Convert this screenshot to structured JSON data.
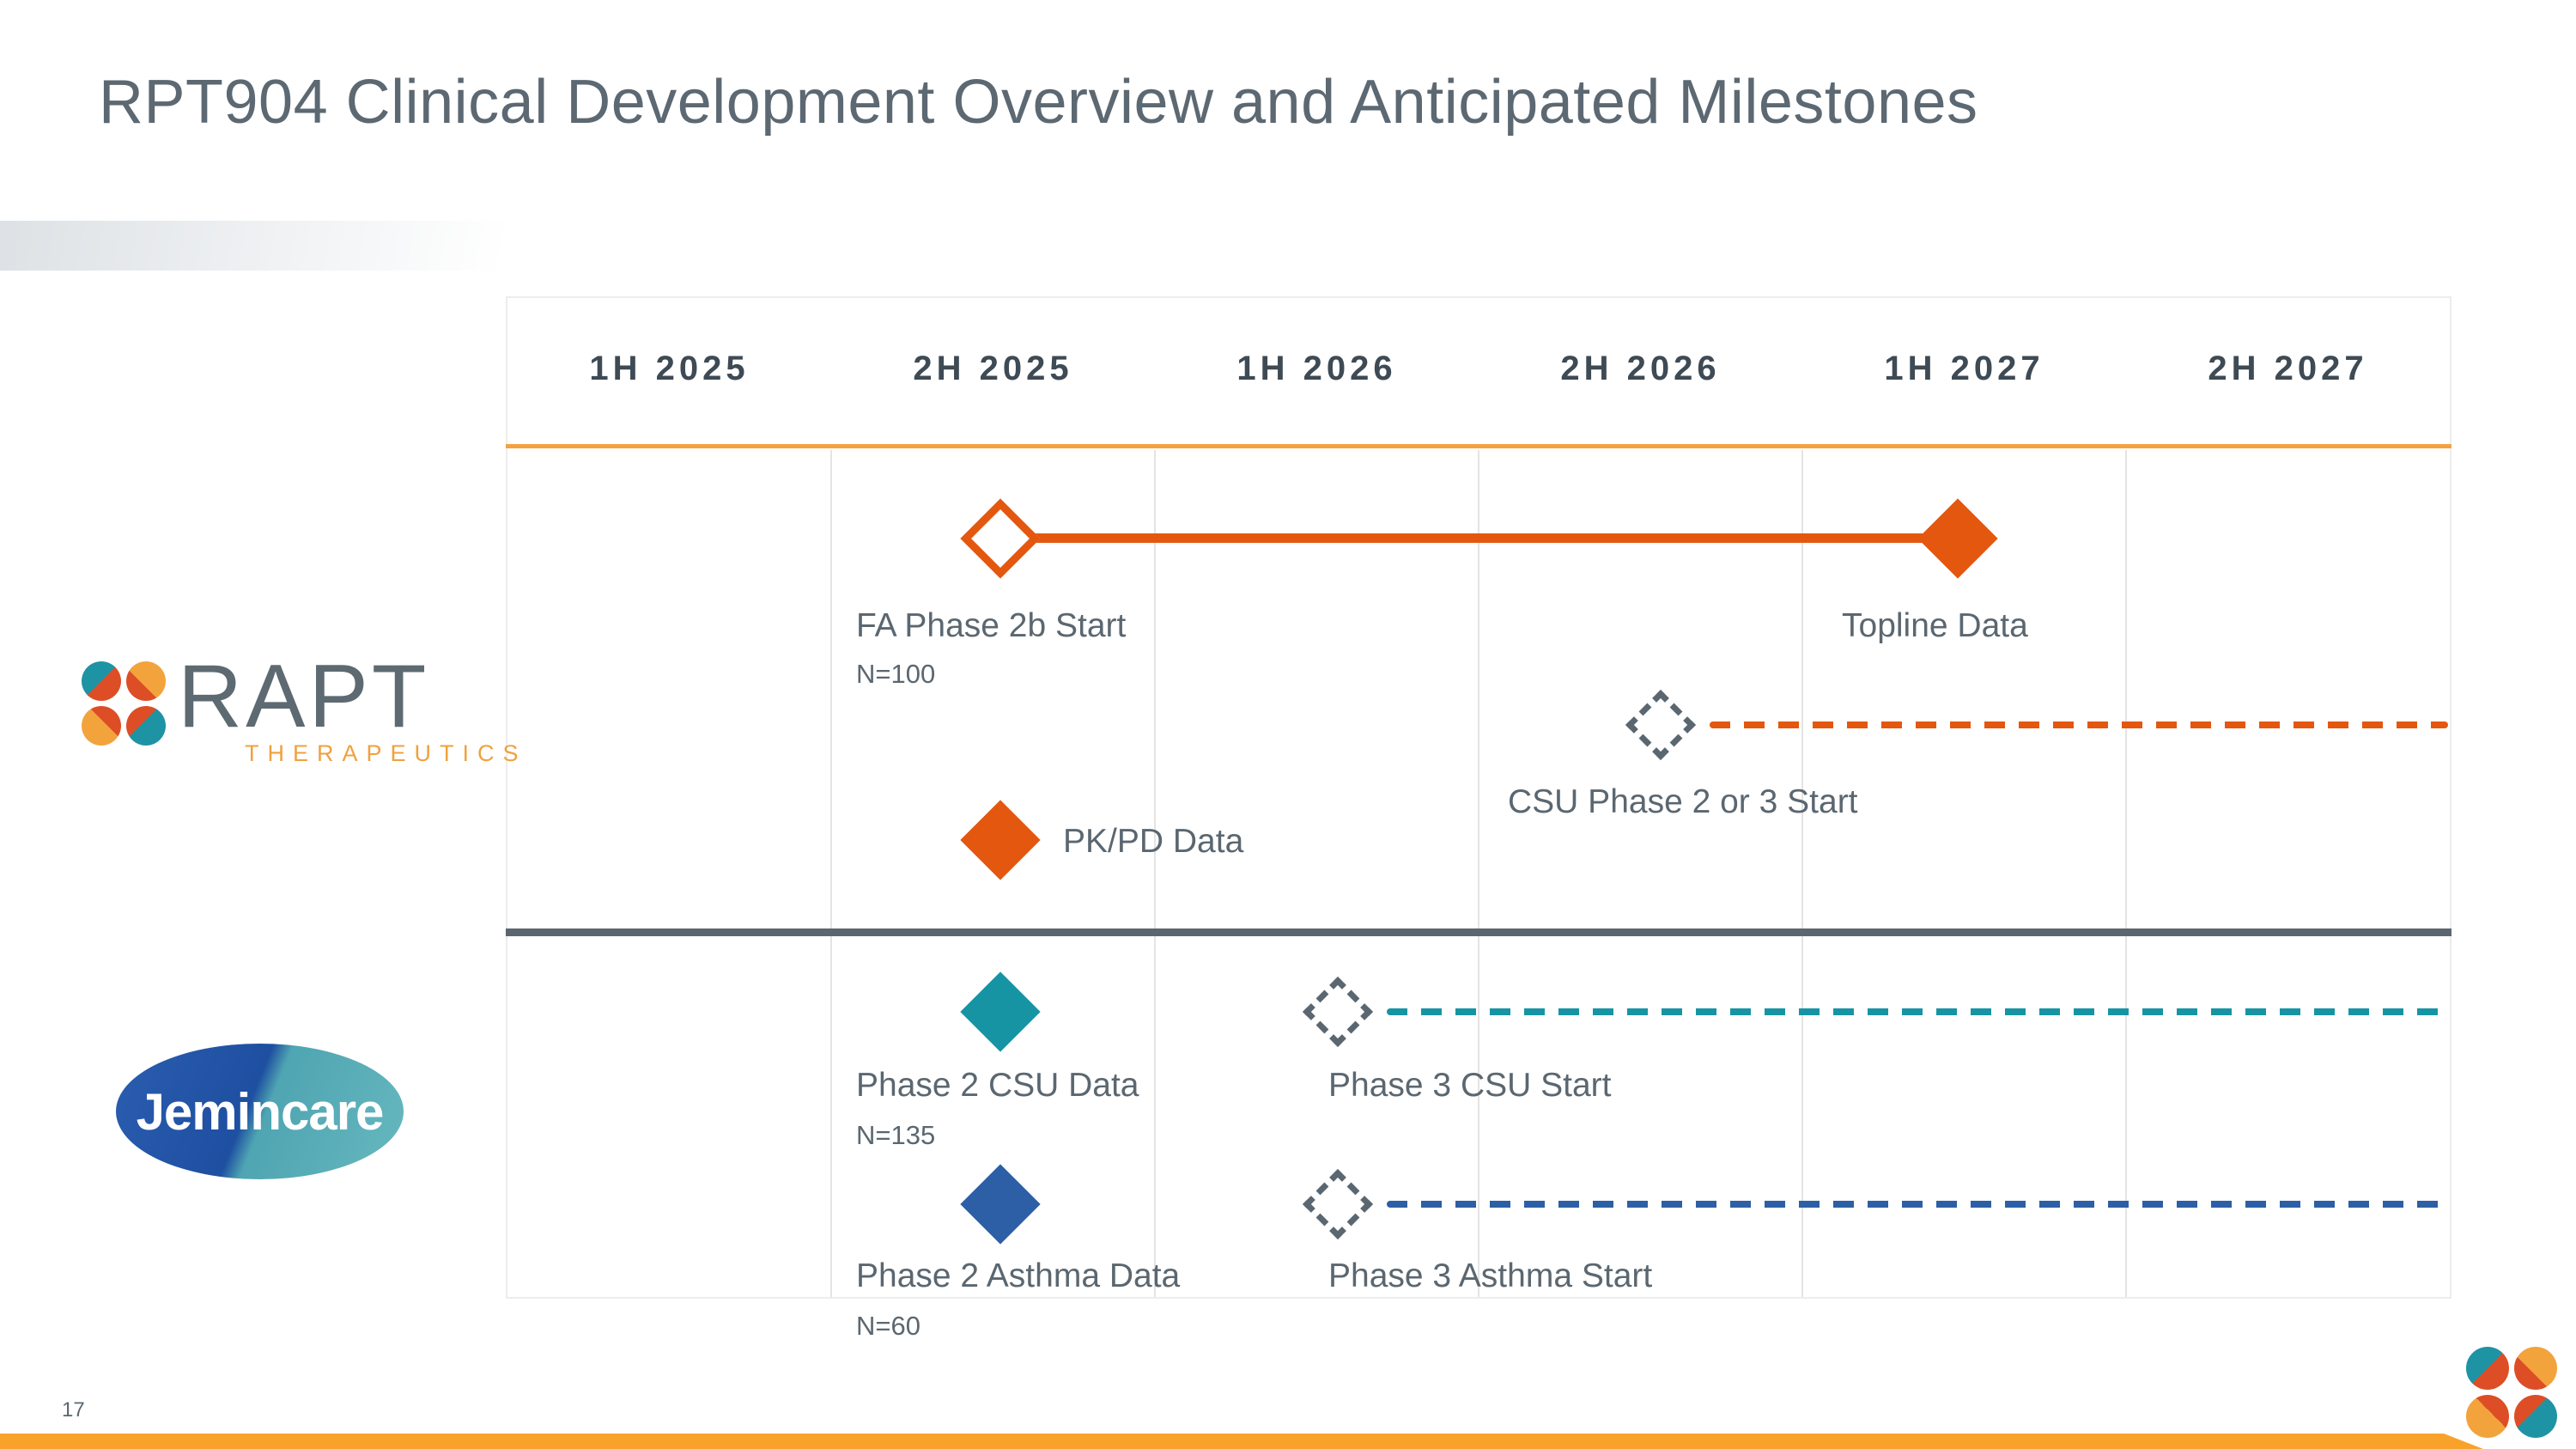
{
  "slide": {
    "title": "RPT904 Clinical Development Overview and Anticipated Milestones",
    "page_number": "17"
  },
  "timeline": {
    "periods": [
      "1H 2025",
      "2H 2025",
      "1H 2026",
      "2H 2026",
      "1H 2027",
      "2H 2027"
    ]
  },
  "tracks": {
    "rapt": {
      "logo": {
        "name": "RAPT",
        "subtitle": "THERAPEUTICS"
      },
      "milestones": {
        "fa_phase2b": {
          "label": "FA Phase 2b Start",
          "n": "N=100",
          "period": "2H 2025",
          "marker": "open-diamond",
          "color": "#E4570F",
          "connector": "solid-line-to-topline-data"
        },
        "topline": {
          "label": "Topline Data",
          "period": "1H 2027",
          "marker": "filled-diamond",
          "color": "#E4570F"
        },
        "csu": {
          "label": "CSU Phase 2 or 3 Start",
          "period": "2H 2026",
          "marker": "dashed-open-diamond",
          "color": "#E4570F",
          "connector": "dashed-line-to-right-edge"
        },
        "pkpd": {
          "label": "PK/PD Data",
          "period": "2H 2025",
          "marker": "filled-diamond",
          "color": "#E4570F"
        }
      }
    },
    "jemincare": {
      "logo": {
        "name": "Jemincare"
      },
      "milestones": {
        "p2csu": {
          "label": "Phase 2 CSU Data",
          "n": "N=135",
          "period": "2H 2025",
          "marker": "filled-diamond",
          "color": "#1794A4"
        },
        "p3csu": {
          "label": "Phase 3 CSU Start",
          "period": "1H 2026",
          "marker": "dashed-open-diamond",
          "color": "#1794A4",
          "connector": "dashed-line-to-right-edge"
        },
        "p2asthma": {
          "label": "Phase 2 Asthma Data",
          "n": "N=60",
          "period": "2H 2025",
          "marker": "filled-diamond",
          "color": "#2C5FA5"
        },
        "p3asthma": {
          "label": "Phase 3 Asthma Start",
          "period": "1H 2026",
          "marker": "dashed-open-diamond",
          "color": "#2C5FA5",
          "connector": "dashed-line-to-right-edge"
        }
      }
    }
  },
  "timeline_data": {
    "type": "milestone-gantt",
    "columns": [
      "1H 2025",
      "2H 2025",
      "1H 2026",
      "2H 2026",
      "1H 2027",
      "2H 2027"
    ],
    "rows": [
      {
        "track": "RAPT Therapeutics",
        "bars": [
          {
            "from": "2H 2025",
            "to": "1H 2027",
            "style": "solid",
            "start_label": "FA Phase 2b Start",
            "end_label": "Topline Data"
          },
          {
            "from": "2H 2026",
            "to": "beyond 2H 2027",
            "style": "dashed",
            "start_label": "CSU Phase 2 or 3 Start"
          }
        ],
        "points": [
          {
            "at": "2H 2025",
            "label": "PK/PD Data"
          }
        ]
      },
      {
        "track": "Jemincare",
        "bars": [
          {
            "from": "1H 2026",
            "to": "beyond 2H 2027",
            "style": "dashed",
            "start_label": "Phase 3 CSU Start"
          },
          {
            "from": "1H 2026",
            "to": "beyond 2H 2027",
            "style": "dashed",
            "start_label": "Phase 3 Asthma Start"
          }
        ],
        "points": [
          {
            "at": "2H 2025",
            "label": "Phase 2 CSU Data"
          },
          {
            "at": "2H 2025",
            "label": "Phase 2 Asthma Data"
          }
        ]
      }
    ]
  },
  "colors": {
    "orange": "#E4570F",
    "amber_rule": "#F2A340",
    "bottom_bar": "#F9A22B",
    "teal": "#1794A4",
    "blue": "#2C5FA5",
    "label_text": "#5B6770",
    "period_text": "#3E4A54",
    "divider": "#5C6670"
  }
}
